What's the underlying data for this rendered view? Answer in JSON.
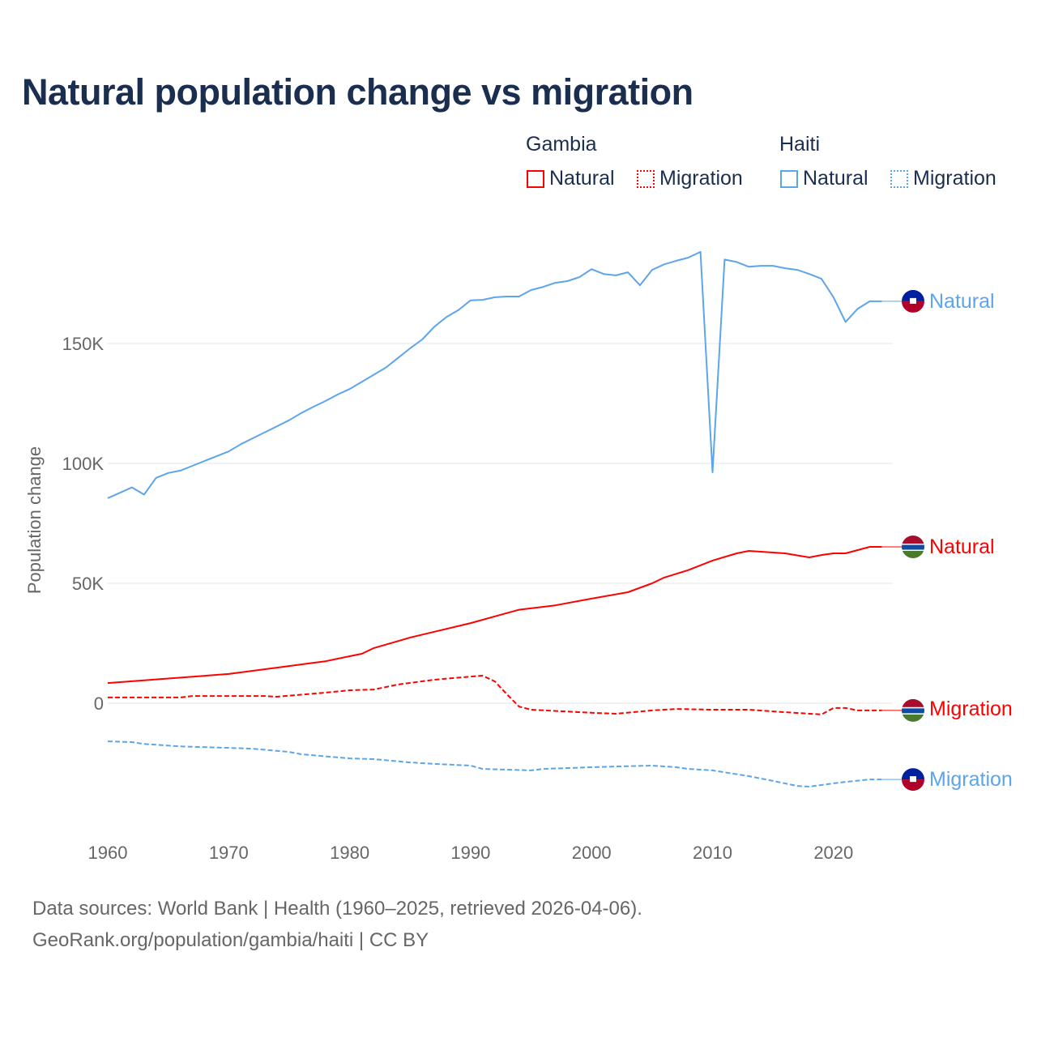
{
  "title": "Natural population change vs migration",
  "legend": {
    "groups": [
      {
        "name": "Gambia",
        "items": [
          {
            "label": "Natural",
            "style": "solid",
            "color": "#ff0000"
          },
          {
            "label": "Migration",
            "style": "dotted",
            "color": "#ff0000"
          }
        ]
      },
      {
        "name": "Haiti",
        "items": [
          {
            "label": "Natural",
            "style": "solid",
            "color": "#5da5ea"
          },
          {
            "label": "Migration",
            "style": "dotted",
            "color": "#5da5ea"
          }
        ]
      }
    ]
  },
  "footer": {
    "line1": "Data sources: World Bank | Health (1960–2025, retrieved 2026-04-06).",
    "line2": "GeoRank.org/population/gambia/haiti | CC BY"
  },
  "chart_data": {
    "type": "line",
    "title": "Natural population change vs migration",
    "xlabel": "",
    "ylabel": "Population change",
    "xlim": [
      1960,
      2025
    ],
    "ylim": [
      -50000,
      200000
    ],
    "xticks": [
      1960,
      1970,
      1980,
      1990,
      2000,
      2010,
      2020
    ],
    "xtick_labels": [
      "1960",
      "1970",
      "1980",
      "1990",
      "2000",
      "2010",
      "2020"
    ],
    "yticks": [
      0,
      50000,
      100000,
      150000
    ],
    "ytick_labels": [
      "0",
      "50K",
      "100K",
      "150K"
    ],
    "grid": true,
    "series": [
      {
        "name": "Haiti Natural",
        "end_label": "Natural",
        "country": "haiti",
        "color": "#5da5ea",
        "dash": "none",
        "points": [
          [
            1960,
            85500
          ],
          [
            1962,
            90000
          ],
          [
            1963,
            87000
          ],
          [
            1964,
            94000
          ],
          [
            1965,
            96000
          ],
          [
            1966,
            97000
          ],
          [
            1967,
            99000
          ],
          [
            1968,
            101000
          ],
          [
            1969,
            103000
          ],
          [
            1970,
            105000
          ],
          [
            1971,
            108000
          ],
          [
            1972,
            110500
          ],
          [
            1973,
            113000
          ],
          [
            1974,
            115500
          ],
          [
            1975,
            118000
          ],
          [
            1976,
            121000
          ],
          [
            1977,
            123600
          ],
          [
            1978,
            126000
          ],
          [
            1979,
            128700
          ],
          [
            1980,
            131000
          ],
          [
            1981,
            134000
          ],
          [
            1982,
            137000
          ],
          [
            1983,
            140000
          ],
          [
            1984,
            144000
          ],
          [
            1985,
            148000
          ],
          [
            1986,
            151700
          ],
          [
            1987,
            157000
          ],
          [
            1988,
            161000
          ],
          [
            1989,
            164000
          ],
          [
            1990,
            168000
          ],
          [
            1991,
            168200
          ],
          [
            1992,
            169300
          ],
          [
            1993,
            169600
          ],
          [
            1994,
            169600
          ],
          [
            1995,
            172300
          ],
          [
            1996,
            173600
          ],
          [
            1997,
            175300
          ],
          [
            1998,
            176000
          ],
          [
            1999,
            177700
          ],
          [
            2000,
            181000
          ],
          [
            2001,
            179000
          ],
          [
            2002,
            178400
          ],
          [
            2003,
            179700
          ],
          [
            2004,
            174300
          ],
          [
            2005,
            180700
          ],
          [
            2006,
            183000
          ],
          [
            2007,
            184500
          ],
          [
            2008,
            185800
          ],
          [
            2009,
            188200
          ],
          [
            2010,
            96300
          ],
          [
            2011,
            185000
          ],
          [
            2012,
            184000
          ],
          [
            2013,
            182000
          ],
          [
            2014,
            182400
          ],
          [
            2015,
            182400
          ],
          [
            2016,
            181400
          ],
          [
            2017,
            180700
          ],
          [
            2018,
            179000
          ],
          [
            2019,
            177000
          ],
          [
            2020,
            169300
          ],
          [
            2021,
            159000
          ],
          [
            2022,
            164500
          ],
          [
            2023,
            167600
          ],
          [
            2024,
            167600
          ]
        ]
      },
      {
        "name": "Gambia Natural",
        "end_label": "Natural",
        "country": "gambia",
        "color": "#ff0000",
        "dash": "none",
        "points": [
          [
            1960,
            8400
          ],
          [
            1965,
            10300
          ],
          [
            1970,
            12200
          ],
          [
            1975,
            15500
          ],
          [
            1978,
            17500
          ],
          [
            1980,
            19600
          ],
          [
            1981,
            20600
          ],
          [
            1982,
            23000
          ],
          [
            1985,
            27400
          ],
          [
            1987,
            29800
          ],
          [
            1990,
            33400
          ],
          [
            1994,
            39000
          ],
          [
            1997,
            40800
          ],
          [
            2000,
            43600
          ],
          [
            2003,
            46300
          ],
          [
            2005,
            50000
          ],
          [
            2006,
            52400
          ],
          [
            2008,
            55500
          ],
          [
            2010,
            59500
          ],
          [
            2012,
            62500
          ],
          [
            2013,
            63500
          ],
          [
            2016,
            62500
          ],
          [
            2018,
            60800
          ],
          [
            2019,
            61800
          ],
          [
            2020,
            62500
          ],
          [
            2021,
            62500
          ],
          [
            2023,
            65200
          ],
          [
            2024,
            65200
          ]
        ]
      },
      {
        "name": "Gambia Migration",
        "end_label": "Migration",
        "country": "gambia",
        "color": "#ff0000",
        "dash": "dashed",
        "points": [
          [
            1960,
            2400
          ],
          [
            1966,
            2400
          ],
          [
            1967,
            3000
          ],
          [
            1973,
            3000
          ],
          [
            1974,
            2700
          ],
          [
            1978,
            4400
          ],
          [
            1980,
            5400
          ],
          [
            1982,
            5700
          ],
          [
            1984,
            7800
          ],
          [
            1987,
            9800
          ],
          [
            1990,
            11100
          ],
          [
            1991,
            11500
          ],
          [
            1992,
            9100
          ],
          [
            1993,
            3700
          ],
          [
            1994,
            -1400
          ],
          [
            1995,
            -2700
          ],
          [
            2000,
            -4000
          ],
          [
            2002,
            -4400
          ],
          [
            2005,
            -3000
          ],
          [
            2007,
            -2400
          ],
          [
            2010,
            -2700
          ],
          [
            2013,
            -2700
          ],
          [
            2015,
            -3400
          ],
          [
            2019,
            -4700
          ],
          [
            2020,
            -2000
          ],
          [
            2021,
            -2000
          ],
          [
            2022,
            -3000
          ],
          [
            2024,
            -3000
          ]
        ]
      },
      {
        "name": "Haiti Migration",
        "end_label": "Migration",
        "country": "haiti",
        "color": "#5da5ea",
        "dash": "dashed",
        "points": [
          [
            1960,
            -15900
          ],
          [
            1962,
            -16200
          ],
          [
            1963,
            -17000
          ],
          [
            1966,
            -18000
          ],
          [
            1970,
            -18600
          ],
          [
            1972,
            -19000
          ],
          [
            1975,
            -20300
          ],
          [
            1976,
            -21300
          ],
          [
            1980,
            -23000
          ],
          [
            1982,
            -23300
          ],
          [
            1985,
            -24700
          ],
          [
            1987,
            -25300
          ],
          [
            1990,
            -26000
          ],
          [
            1991,
            -27400
          ],
          [
            1995,
            -28000
          ],
          [
            1996,
            -27400
          ],
          [
            2000,
            -26700
          ],
          [
            2002,
            -26400
          ],
          [
            2005,
            -26000
          ],
          [
            2007,
            -26700
          ],
          [
            2008,
            -27400
          ],
          [
            2010,
            -28000
          ],
          [
            2013,
            -30400
          ],
          [
            2015,
            -32400
          ],
          [
            2017,
            -34500
          ],
          [
            2018,
            -34800
          ],
          [
            2020,
            -33400
          ],
          [
            2021,
            -32800
          ],
          [
            2023,
            -31800
          ],
          [
            2024,
            -31800
          ]
        ]
      }
    ]
  }
}
